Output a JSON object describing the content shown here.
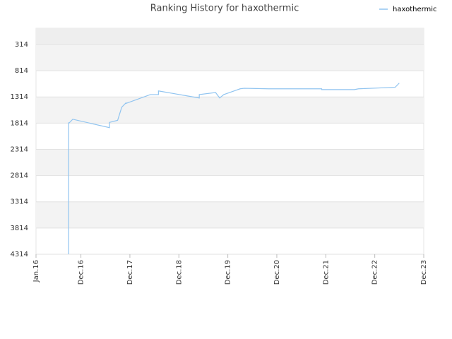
{
  "chart_data": {
    "type": "line",
    "title": "Ranking History for haxothermic",
    "x": [
      "2016-09",
      "2016-09",
      "2016-09",
      "2016-09",
      "2016-10",
      "2017-07",
      "2017-07",
      "2017-09",
      "2017-10",
      "2017-11",
      "2017-11",
      "2018-05",
      "2018-07",
      "2018-07",
      "2019-05",
      "2019-05",
      "2019-09",
      "2019-10",
      "2019-11",
      "2020-03",
      "2020-04",
      "2020-10",
      "2021-11",
      "2021-11",
      "2022-07",
      "2022-08",
      "2023-05",
      "2023-06"
    ],
    "series": [
      {
        "name": "haxothermic",
        "color": "#90c4f0",
        "values": [
          4314,
          4100,
          1800,
          1820,
          1740,
          1900,
          1800,
          1760,
          1510,
          1430,
          1440,
          1270,
          1270,
          1200,
          1335,
          1270,
          1230,
          1335,
          1270,
          1160,
          1150,
          1160,
          1160,
          1175,
          1175,
          1160,
          1130,
          1050
        ]
      }
    ],
    "xlim": [
      "2016-01",
      "2023-12"
    ],
    "xticks": [
      {
        "value": "2016-01",
        "label": "Jan.16"
      },
      {
        "value": "2016-12",
        "label": "Dec.16"
      },
      {
        "value": "2017-12",
        "label": "Dec.17"
      },
      {
        "value": "2018-12",
        "label": "Dec.18"
      },
      {
        "value": "2019-12",
        "label": "Dec.19"
      },
      {
        "value": "2020-12",
        "label": "Dec.20"
      },
      {
        "value": "2021-12",
        "label": "Dec.21"
      },
      {
        "value": "2022-12",
        "label": "Dec.22"
      },
      {
        "value": "2023-12",
        "label": "Dec.23"
      }
    ],
    "ylim": [
      4314,
      5
    ],
    "yticks": [
      314,
      814,
      1314,
      1814,
      2314,
      2814,
      3314,
      3814,
      4314
    ],
    "grid": true,
    "legend": "top-right"
  }
}
